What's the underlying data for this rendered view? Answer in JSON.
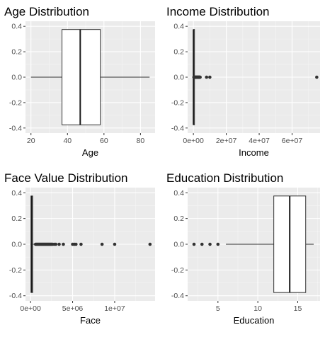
{
  "chart_data": [
    {
      "type": "boxplot",
      "title": "Age Distribution",
      "xlabel": "Age",
      "xlim": [
        17,
        88
      ],
      "ylim": [
        -0.4,
        0.4
      ],
      "xticks": [
        {
          "v": 20,
          "label": "20"
        },
        {
          "v": 40,
          "label": "40"
        },
        {
          "v": 60,
          "label": "60"
        },
        {
          "v": 80,
          "label": "80"
        }
      ],
      "yticks": [
        {
          "v": 0.4,
          "label": "0.4"
        },
        {
          "v": 0.2,
          "label": "0.2"
        },
        {
          "v": 0.0,
          "label": "0.0"
        },
        {
          "v": -0.2,
          "label": "-0.2"
        },
        {
          "v": -0.4,
          "label": "-0.4"
        }
      ],
      "box": {
        "whisker_low": 20,
        "q1": 37,
        "median": 47,
        "q3": 58,
        "whisker_high": 85
      },
      "outliers": []
    },
    {
      "type": "boxplot",
      "title": "Income Distribution",
      "xlabel": "Income",
      "xlim": [
        -3500000,
        77000000
      ],
      "ylim": [
        -0.4,
        0.4
      ],
      "xticks": [
        {
          "v": 0,
          "label": "0e+00"
        },
        {
          "v": 20000000,
          "label": "2e+07"
        },
        {
          "v": 40000000,
          "label": "4e+07"
        },
        {
          "v": 60000000,
          "label": "6e+07"
        }
      ],
      "yticks": [
        {
          "v": 0.4,
          "label": "0.4"
        },
        {
          "v": 0.2,
          "label": "0.2"
        },
        {
          "v": 0.0,
          "label": "0.0"
        },
        {
          "v": -0.2,
          "label": "-0.2"
        },
        {
          "v": -0.4,
          "label": "-0.4"
        }
      ],
      "box": {
        "whisker_low": 0,
        "q1": 20000,
        "median": 50000,
        "q3": 90000,
        "whisker_high": 200000
      },
      "outliers": [
        300000,
        500000,
        700000,
        900000,
        1100000,
        1300000,
        1500000,
        1700000,
        1900000,
        2100000,
        2300000,
        2500000,
        2700000,
        2900000,
        3100000,
        3300000,
        3500000,
        3700000,
        3900000,
        4100000,
        8000000,
        10000000,
        75000000
      ]
    },
    {
      "type": "boxplot",
      "title": "Face Value Distribution",
      "xlabel": "Face",
      "xlim": [
        -600000,
        14800000
      ],
      "ylim": [
        -0.4,
        0.4
      ],
      "xticks": [
        {
          "v": 0,
          "label": "0e+00"
        },
        {
          "v": 5000000,
          "label": "5e+06"
        },
        {
          "v": 10000000,
          "label": "1e+07"
        }
      ],
      "yticks": [
        {
          "v": 0.4,
          "label": "0.4"
        },
        {
          "v": 0.2,
          "label": "0.2"
        },
        {
          "v": 0.0,
          "label": "0.0"
        },
        {
          "v": -0.2,
          "label": "-0.2"
        },
        {
          "v": -0.4,
          "label": "-0.4"
        }
      ],
      "box": {
        "whisker_low": 0,
        "q1": 50000,
        "median": 120000,
        "q3": 250000,
        "whisker_high": 550000
      },
      "outliers": [
        600000,
        700000,
        800000,
        900000,
        1000000,
        1100000,
        1200000,
        1300000,
        1400000,
        1500000,
        1600000,
        1700000,
        1800000,
        1900000,
        2000000,
        2100000,
        2200000,
        2300000,
        2400000,
        2500000,
        2600000,
        2800000,
        3000000,
        3400000,
        3900000,
        5000000,
        5200000,
        5400000,
        6000000,
        8500000,
        10000000,
        14200000
      ]
    },
    {
      "type": "boxplot",
      "title": "Education Distribution",
      "xlabel": "Education",
      "xlim": [
        1.2,
        17.8
      ],
      "ylim": [
        -0.4,
        0.4
      ],
      "xticks": [
        {
          "v": 5,
          "label": "5"
        },
        {
          "v": 10,
          "label": "10"
        },
        {
          "v": 15,
          "label": "15"
        }
      ],
      "yticks": [
        {
          "v": 0.4,
          "label": "0.4"
        },
        {
          "v": 0.2,
          "label": "0.2"
        },
        {
          "v": 0.0,
          "label": "0.0"
        },
        {
          "v": -0.2,
          "label": "-0.2"
        },
        {
          "v": -0.4,
          "label": "-0.4"
        }
      ],
      "box": {
        "whisker_low": 6,
        "q1": 12,
        "median": 14,
        "q3": 16,
        "whisker_high": 17
      },
      "outliers": [
        2,
        3,
        4,
        5
      ]
    }
  ]
}
